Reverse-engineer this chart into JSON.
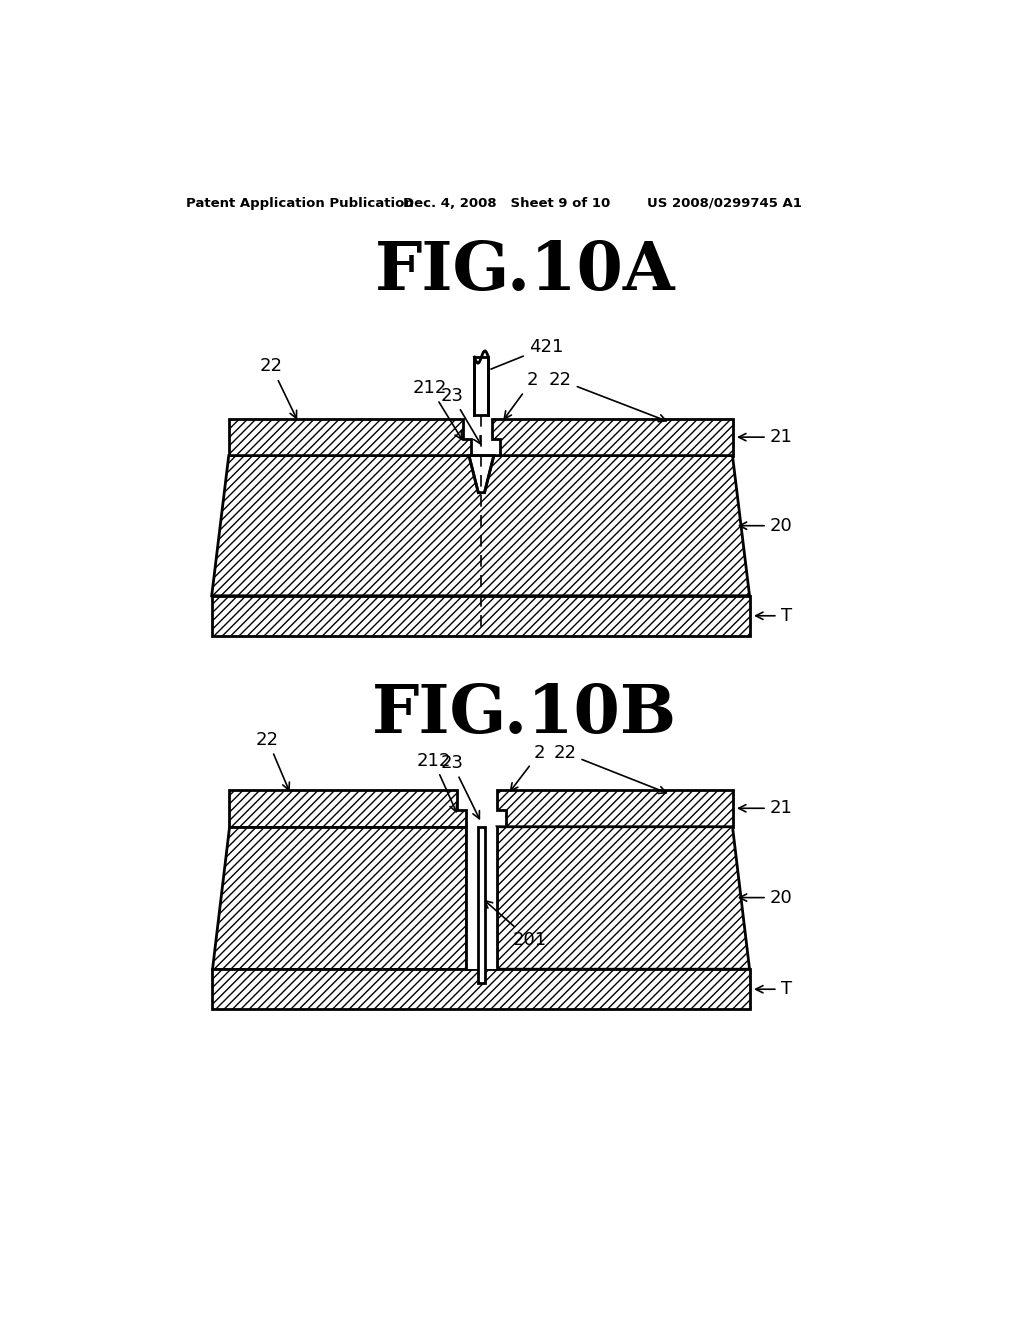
{
  "bg_color": "#ffffff",
  "header_left": "Patent Application Publication",
  "header_mid": "Dec. 4, 2008   Sheet 9 of 10",
  "header_right": "US 2008/0299745 A1",
  "fig_title_A": "FIG.10A",
  "fig_title_B": "FIG.10B",
  "line_color": "#000000",
  "header_fontsize": 9.5,
  "title_fontsize": 48,
  "label_fontsize": 13
}
